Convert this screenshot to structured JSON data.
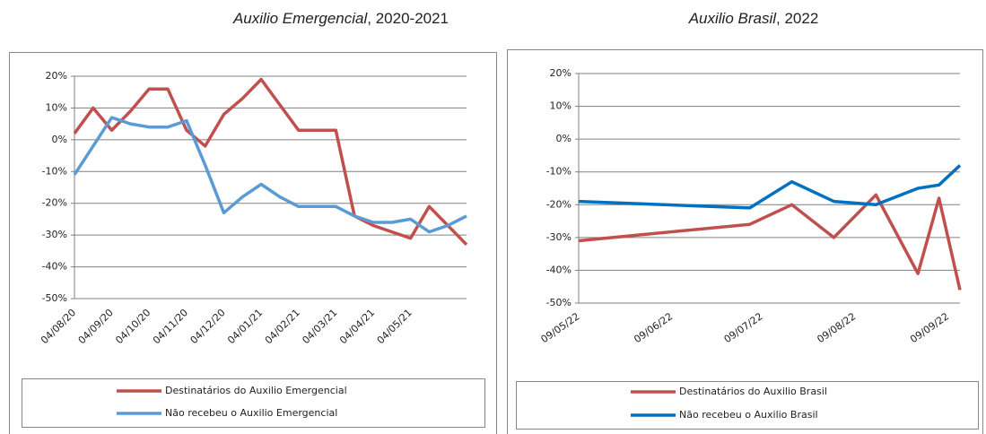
{
  "chart_data": [
    {
      "type": "line",
      "title": [
        "Auxilio Emergencial",
        ", 2020-2021"
      ],
      "categories": [
        "04/08/20",
        null,
        "04/09/20",
        null,
        "04/10/20",
        null,
        "04/11/20",
        null,
        "04/12/20",
        null,
        "04/01/21",
        null,
        "04/02/21",
        null,
        "04/03/21",
        null,
        "04/04/21",
        null,
        "04/05/21",
        null,
        null,
        null
      ],
      "series": [
        {
          "name": "Destinatários do Auxilio Emergencial",
          "color": "#c0504d",
          "values": [
            2,
            10,
            3,
            9,
            16,
            16,
            3,
            -2,
            8,
            13,
            19,
            11,
            3,
            3,
            3,
            -24,
            -27,
            -29,
            -31,
            -21,
            -27,
            -33
          ]
        },
        {
          "name": "Não recebeu o Auxilio Emergencial",
          "color": "#5b9bd5",
          "values": [
            -11,
            -2,
            7,
            5,
            4,
            4,
            6,
            -8,
            -23,
            -18,
            -14,
            -18,
            -21,
            -21,
            -21,
            -24,
            -26,
            -26,
            -25,
            -29,
            -27,
            -24
          ]
        }
      ],
      "ylim": [
        -50,
        20
      ],
      "yticks": [
        {
          "value": -50,
          "label": "-50%"
        },
        {
          "value": -40,
          "label": "-40%"
        },
        {
          "value": -30,
          "label": "-30%"
        },
        {
          "value": -20,
          "label": "-20%"
        },
        {
          "value": -10,
          "label": "-10%"
        },
        {
          "value": 0,
          "label": "0%"
        },
        {
          "value": 10,
          "label": "10%"
        },
        {
          "value": 20,
          "label": "20%"
        }
      ],
      "grid": true
    },
    {
      "type": "line",
      "title": [
        "Auxilio Brasil",
        ", 2022"
      ],
      "x": [
        "09/05/22",
        "05/07/22",
        "19/07/22",
        "02/08/22",
        "16/08/22",
        "30/08/22",
        "06/09/22",
        "13/09/22"
      ],
      "xlim": [
        "09/05/22",
        "13/09/22"
      ],
      "xticks": [
        "09/05/22",
        "09/06/22",
        "09/07/22",
        "09/08/22",
        "09/09/22"
      ],
      "series": [
        {
          "name": "Destinatários do Auxilio Brasil",
          "color": "#c0504d",
          "values": [
            -31,
            -26,
            -20,
            -30,
            -17,
            -41,
            -18,
            -46
          ]
        },
        {
          "name": "Não recebeu o Auxilio Brasil",
          "color": "#0070c0",
          "values": [
            -19,
            -21,
            -13,
            -19,
            -20,
            -15,
            -14,
            -8
          ]
        }
      ],
      "ylim": [
        -50,
        20
      ],
      "yticks": [
        {
          "value": -50,
          "label": "-50%"
        },
        {
          "value": -40,
          "label": "-40%"
        },
        {
          "value": -30,
          "label": "-30%"
        },
        {
          "value": -20,
          "label": "-20%"
        },
        {
          "value": -10,
          "label": "-10%"
        },
        {
          "value": 0,
          "label": "0%"
        },
        {
          "value": 10,
          "label": "10%"
        },
        {
          "value": 20,
          "label": "20%"
        }
      ],
      "grid": true
    }
  ]
}
